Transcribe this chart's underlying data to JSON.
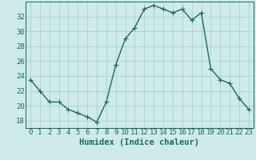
{
  "x": [
    0,
    1,
    2,
    3,
    4,
    5,
    6,
    7,
    8,
    9,
    10,
    11,
    12,
    13,
    14,
    15,
    16,
    17,
    18,
    19,
    20,
    21,
    22,
    23
  ],
  "y": [
    23.5,
    22.0,
    20.5,
    20.5,
    19.5,
    19.0,
    18.5,
    17.8,
    20.5,
    25.5,
    29.0,
    30.5,
    33.0,
    33.5,
    33.0,
    32.5,
    33.0,
    31.5,
    32.5,
    25.0,
    23.5,
    23.0,
    21.0,
    19.5
  ],
  "line_color": "#1a6b5a",
  "marker": "D",
  "marker_size": 2.5,
  "bg_color": "#ceeaea",
  "grid_color": "#aacccc",
  "xlabel": "Humidex (Indice chaleur)",
  "ylim": [
    17,
    34
  ],
  "xlim": [
    -0.5,
    23.5
  ],
  "yticks": [
    18,
    20,
    22,
    24,
    26,
    28,
    30,
    32
  ],
  "xticks": [
    0,
    1,
    2,
    3,
    4,
    5,
    6,
    7,
    8,
    9,
    10,
    11,
    12,
    13,
    14,
    15,
    16,
    17,
    18,
    19,
    20,
    21,
    22,
    23
  ],
  "xlabel_fontsize": 7.5,
  "tick_fontsize": 6.5,
  "tick_color": "#1a6b5a",
  "line_width": 1.0
}
